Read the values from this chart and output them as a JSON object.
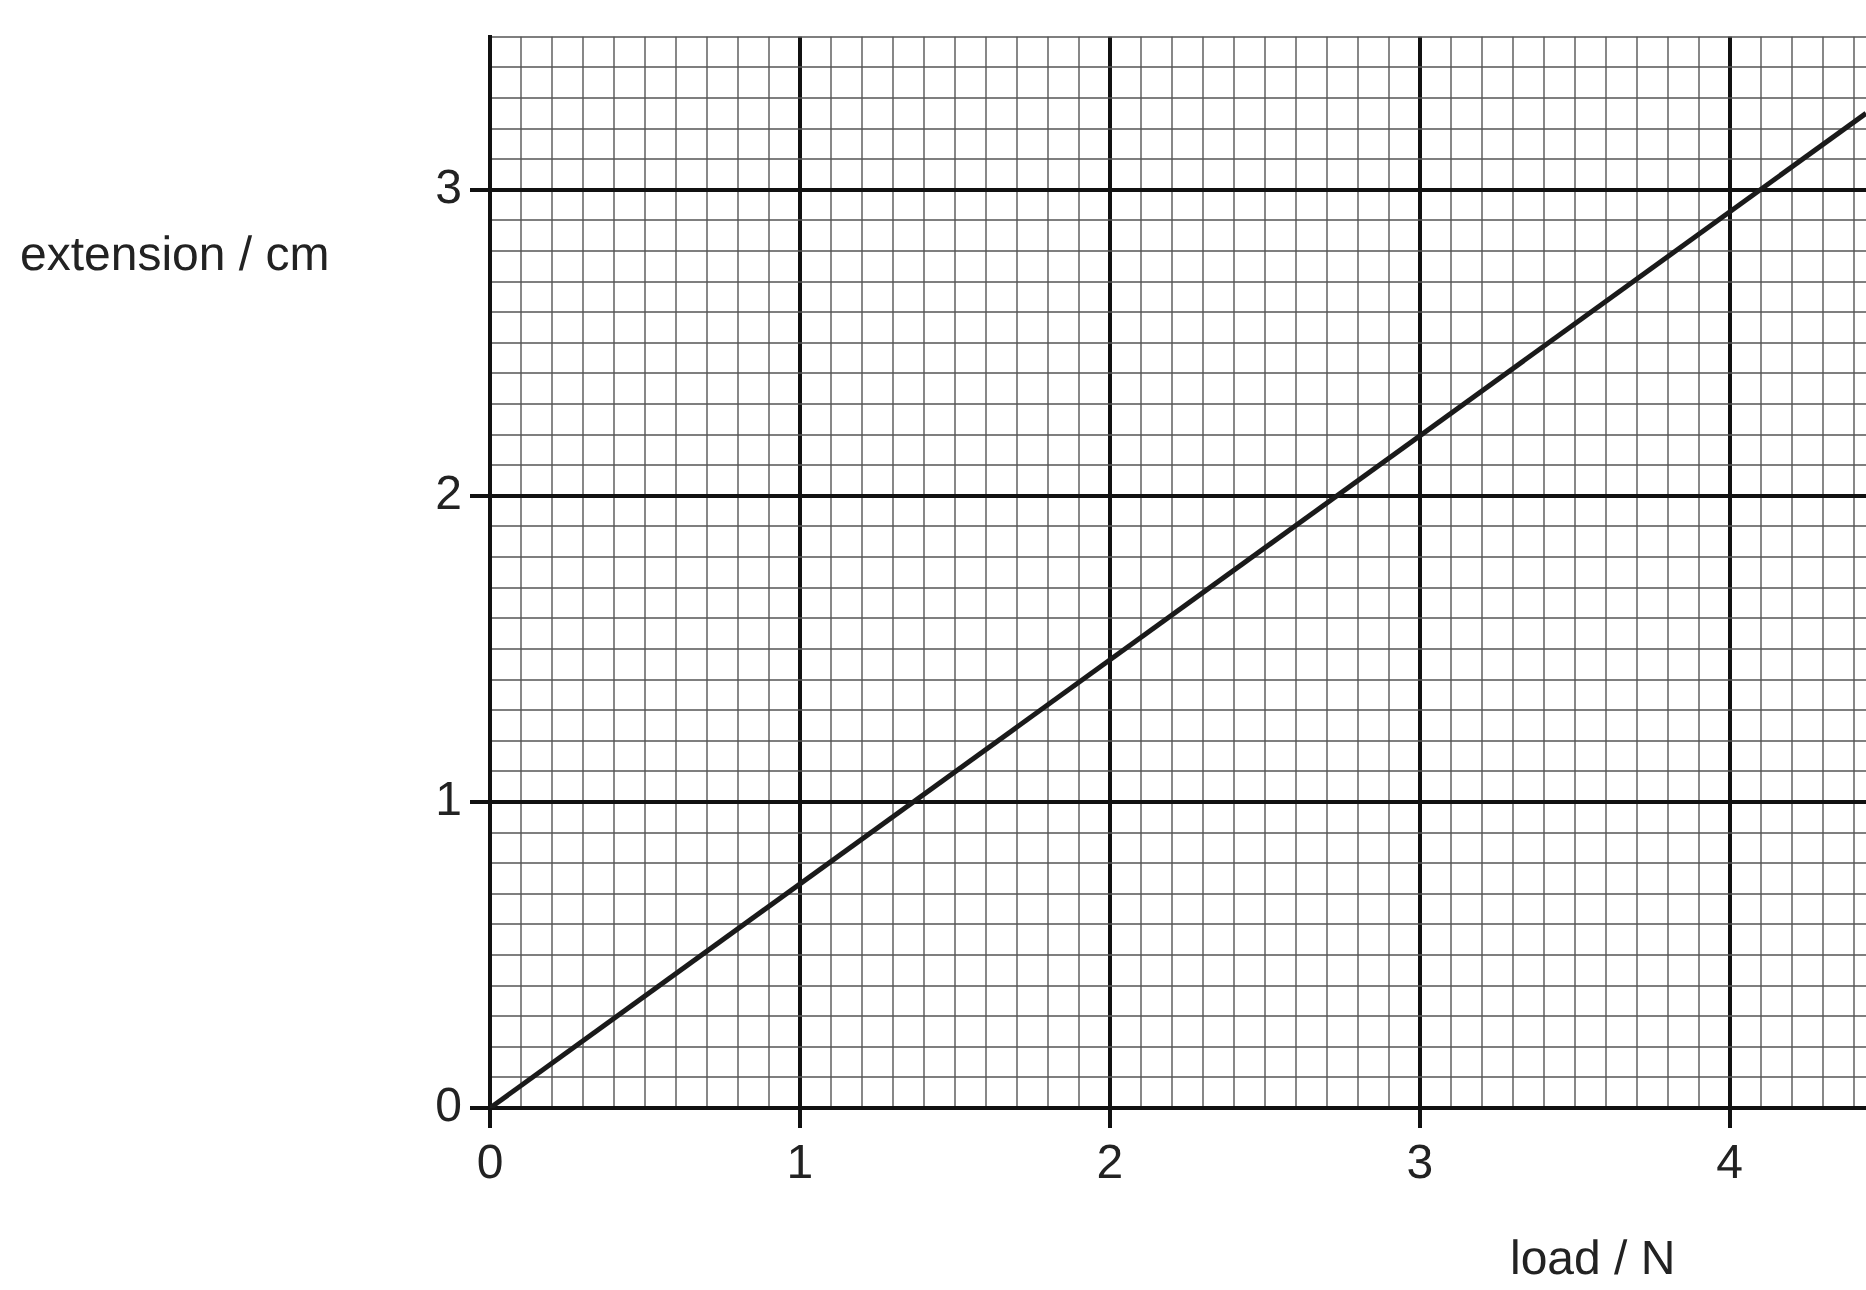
{
  "chart_data": {
    "type": "line",
    "xlabel": "load / N",
    "ylabel": "extension / cm",
    "x": [
      0,
      4.44
    ],
    "series": [
      {
        "color": "#1a1a1a",
        "values": [
          0,
          3.25
        ]
      }
    ],
    "xlim": [
      0,
      4.44
    ],
    "ylim": [
      0,
      3.5
    ],
    "xticks": [
      0,
      {
        "value": 0.1,
        "label": null
      },
      {
        "value": 0.2,
        "label": null
      },
      {
        "value": 0.3,
        "label": null
      },
      {
        "value": 0.4,
        "label": null
      },
      {
        "value": 0.5,
        "label": null
      },
      {
        "value": 0.6,
        "label": null
      },
      {
        "value": 0.7,
        "label": null
      },
      {
        "value": 0.8,
        "label": null
      },
      {
        "value": 0.9,
        "label": null
      },
      1,
      {
        "value": 1.1,
        "label": null
      },
      {
        "value": 1.2,
        "label": null
      },
      {
        "value": 1.3,
        "label": null
      },
      {
        "value": 1.4,
        "label": null
      },
      {
        "value": 1.5,
        "label": null
      },
      {
        "value": 1.6,
        "label": null
      },
      {
        "value": 1.7,
        "label": null
      },
      {
        "value": 1.8,
        "label": null
      },
      {
        "value": 1.9,
        "label": null
      },
      2,
      {
        "value": 2.1,
        "label": null
      },
      {
        "value": 2.2,
        "label": null
      },
      {
        "value": 2.3,
        "label": null
      },
      {
        "value": 2.4,
        "label": null
      },
      {
        "value": 2.5,
        "label": null
      },
      {
        "value": 2.6,
        "label": null
      },
      {
        "value": 2.7,
        "label": null
      },
      {
        "value": 2.8,
        "label": null
      },
      {
        "value": 2.9,
        "label": null
      },
      3,
      {
        "value": 3.1,
        "label": null
      },
      {
        "value": 3.2,
        "label": null
      },
      {
        "value": 3.3,
        "label": null
      },
      {
        "value": 3.4,
        "label": null
      },
      {
        "value": 3.5,
        "label": null
      },
      {
        "value": 3.6,
        "label": null
      },
      {
        "value": 3.7,
        "label": null
      },
      {
        "value": 3.8,
        "label": null
      },
      {
        "value": 3.9,
        "label": null
      },
      4,
      {
        "value": 4.1,
        "label": null
      },
      {
        "value": 4.2,
        "label": null
      },
      {
        "value": 4.3,
        "label": null
      },
      {
        "value": 4.4,
        "label": null
      }
    ],
    "yticks": [
      0,
      {
        "value": 0.1,
        "label": null
      },
      {
        "value": 0.2,
        "label": null
      },
      {
        "value": 0.3,
        "label": null
      },
      {
        "value": 0.4,
        "label": null
      },
      {
        "value": 0.5,
        "label": null
      },
      {
        "value": 0.6,
        "label": null
      },
      {
        "value": 0.7,
        "label": null
      },
      {
        "value": 0.8,
        "label": null
      },
      {
        "value": 0.9,
        "label": null
      },
      1,
      {
        "value": 1.1,
        "label": null
      },
      {
        "value": 1.2,
        "label": null
      },
      {
        "value": 1.3,
        "label": null
      },
      {
        "value": 1.4,
        "label": null
      },
      {
        "value": 1.5,
        "label": null
      },
      {
        "value": 1.6,
        "label": null
      },
      {
        "value": 1.7,
        "label": null
      },
      {
        "value": 1.8,
        "label": null
      },
      {
        "value": 1.9,
        "label": null
      },
      2,
      {
        "value": 2.1,
        "label": null
      },
      {
        "value": 2.2,
        "label": null
      },
      {
        "value": 2.3,
        "label": null
      },
      {
        "value": 2.4,
        "label": null
      },
      {
        "value": 2.5,
        "label": null
      },
      {
        "value": 2.6,
        "label": null
      },
      {
        "value": 2.7,
        "label": null
      },
      {
        "value": 2.8,
        "label": null
      },
      {
        "value": 2.9,
        "label": null
      },
      3,
      {
        "value": 3.1,
        "label": null
      },
      {
        "value": 3.2,
        "label": null
      },
      {
        "value": 3.3,
        "label": null
      },
      {
        "value": 3.4,
        "label": null
      },
      {
        "value": 3.5,
        "label": null
      }
    ],
    "grid": true,
    "marker": "none",
    "line_style": "solid",
    "legend": false
  }
}
